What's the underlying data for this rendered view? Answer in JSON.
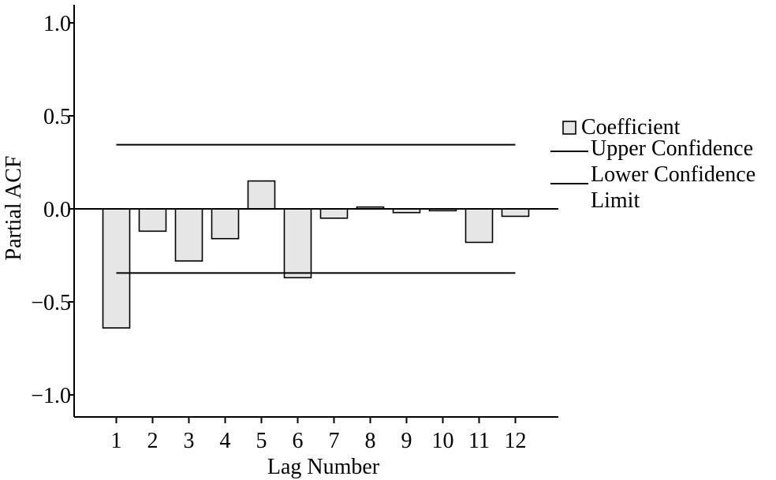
{
  "chart_data": {
    "type": "bar",
    "title": "",
    "xlabel": "Lag Number",
    "ylabel": "Partial ACF",
    "categories": [
      "1",
      "2",
      "3",
      "4",
      "5",
      "6",
      "7",
      "8",
      "9",
      "10",
      "11",
      "12"
    ],
    "series": [
      {
        "name": "Coefficient",
        "values": [
          -0.64,
          -0.12,
          -0.28,
          -0.16,
          0.15,
          -0.37,
          -0.05,
          0.01,
          -0.02,
          -0.01,
          -0.18,
          -0.04
        ]
      }
    ],
    "upper_confidence_limit": 0.345,
    "lower_confidence_limit": -0.345,
    "ylim": [
      -1.1,
      1.1
    ],
    "yticks": [
      1.0,
      0.5,
      0.0,
      -0.5,
      -1.0
    ],
    "ytick_labels": [
      "1.0",
      "0.5",
      "0.0",
      "−0.5",
      "−1.0"
    ],
    "grid": false,
    "legend_position": "right",
    "legend": [
      {
        "label": "Coefficient",
        "kind": "bar"
      },
      {
        "label": "Upper Confidence",
        "kind": "line"
      },
      {
        "label": "Lower Confidence",
        "kind": "line"
      },
      {
        "label": "Limit",
        "kind": "text"
      }
    ],
    "colors": {
      "bar_fill": "#e6e6e6",
      "stroke": "#000000"
    }
  }
}
